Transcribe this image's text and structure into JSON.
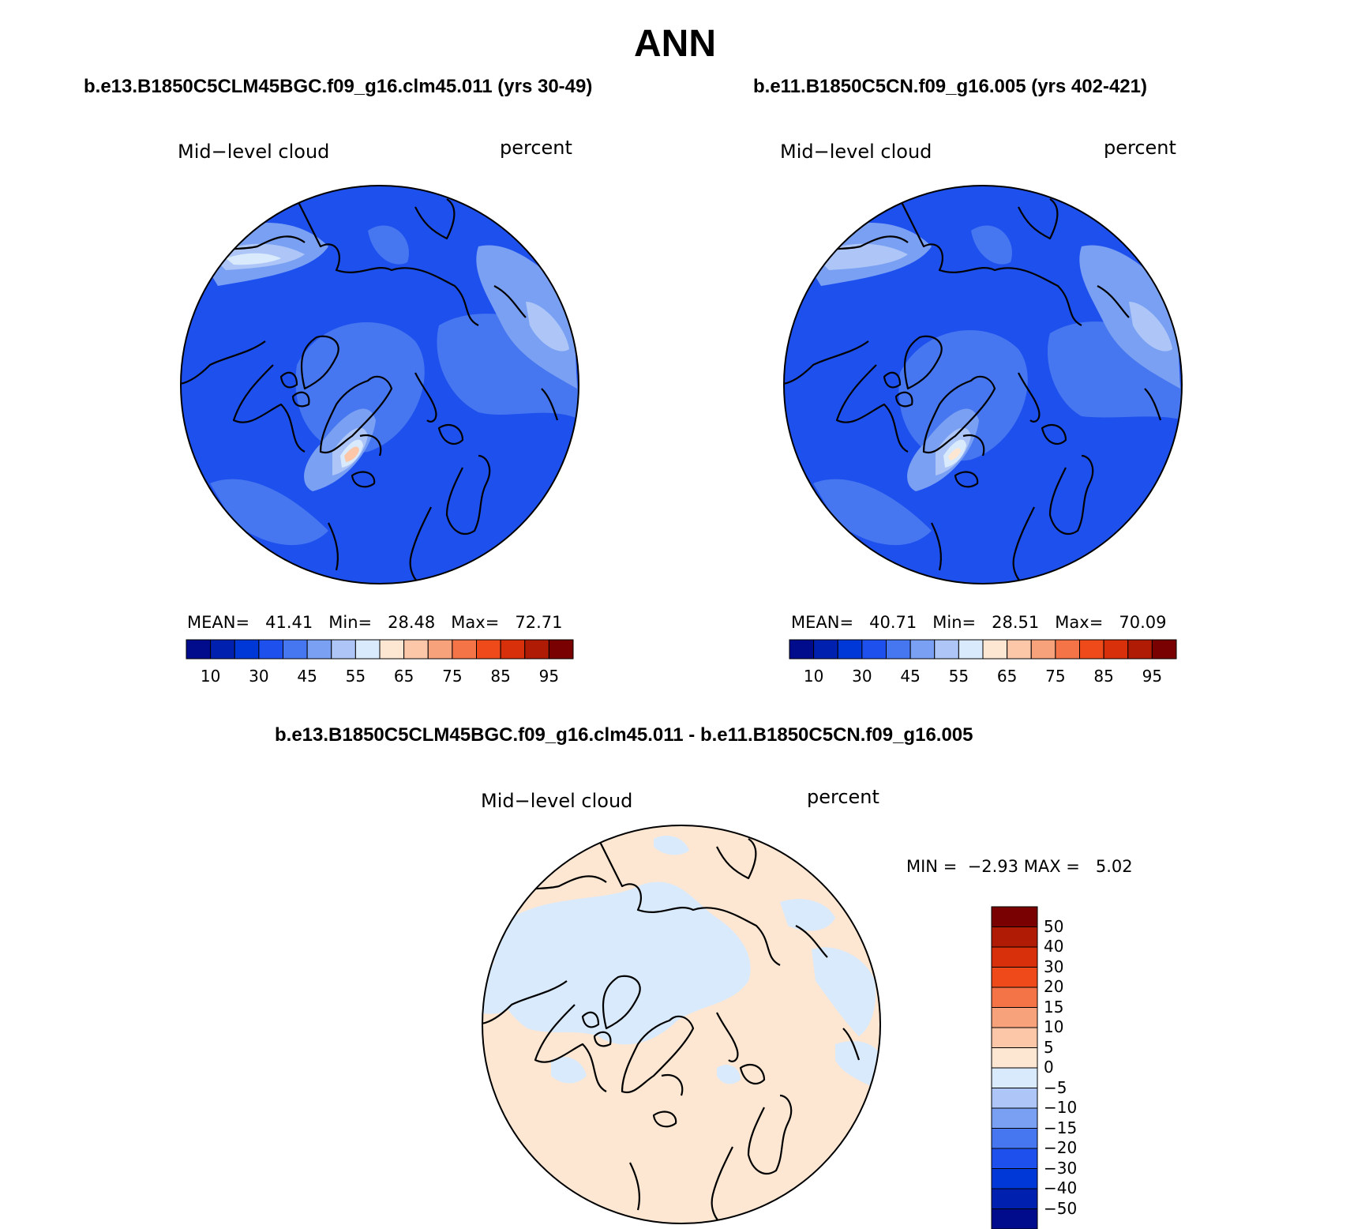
{
  "title": "ANN",
  "colors": {
    "palette16": [
      "#000c8c",
      "#0020b0",
      "#0038d8",
      "#1e50ee",
      "#4677f0",
      "#7aa0f3",
      "#adc6f7",
      "#d9eafc",
      "#fde7d2",
      "#fcc7a9",
      "#f8a27c",
      "#f47447",
      "#ef4a1a",
      "#d8300a",
      "#b01b06",
      "#7a0102"
    ],
    "ocean_base": "#1e50ee",
    "ocean_mid": "#4677f0",
    "diff_pos": "#fde7d2",
    "diff_neg": "#d9eafc",
    "coast": "#000000"
  },
  "panels": [
    {
      "case_title": "b.e13.B1850C5CLM45BGC.f09_g16.clm45.011 (yrs 30-49)",
      "var_label": "Mid−level cloud",
      "units": "percent",
      "stats": {
        "mean_label": "MEAN=",
        "mean": "41.41",
        "min_label": "Min=",
        "min": "28.48",
        "max_label": "Max=",
        "max": "72.71"
      },
      "colorbar_ticks": [
        "10",
        "30",
        "45",
        "55",
        "65",
        "75",
        "85",
        "95"
      ]
    },
    {
      "case_title": "b.e11.B1850C5CN.f09_g16.005 (yrs 402-421)",
      "var_label": "Mid−level cloud",
      "units": "percent",
      "stats": {
        "mean_label": "MEAN=",
        "mean": "40.71",
        "min_label": "Min=",
        "min": "28.51",
        "max_label": "Max=",
        "max": "70.09"
      },
      "colorbar_ticks": [
        "10",
        "30",
        "45",
        "55",
        "65",
        "75",
        "85",
        "95"
      ]
    }
  ],
  "diff_panel": {
    "case_title": "b.e13.B1850C5CLM45BGC.f09_g16.clm45.011 - b.e11.B1850C5CN.f09_g16.005",
    "var_label": "Mid−level cloud",
    "units": "percent",
    "stats": {
      "min_label": "MIN =",
      "min": "−2.93",
      "max_label": "MAX =",
      "max": "5.02"
    },
    "colorbar_ticks": [
      "50",
      "40",
      "30",
      "20",
      "15",
      "10",
      "5",
      "0",
      "−5",
      "−10",
      "−15",
      "−20",
      "−30",
      "−40",
      "−50"
    ]
  }
}
